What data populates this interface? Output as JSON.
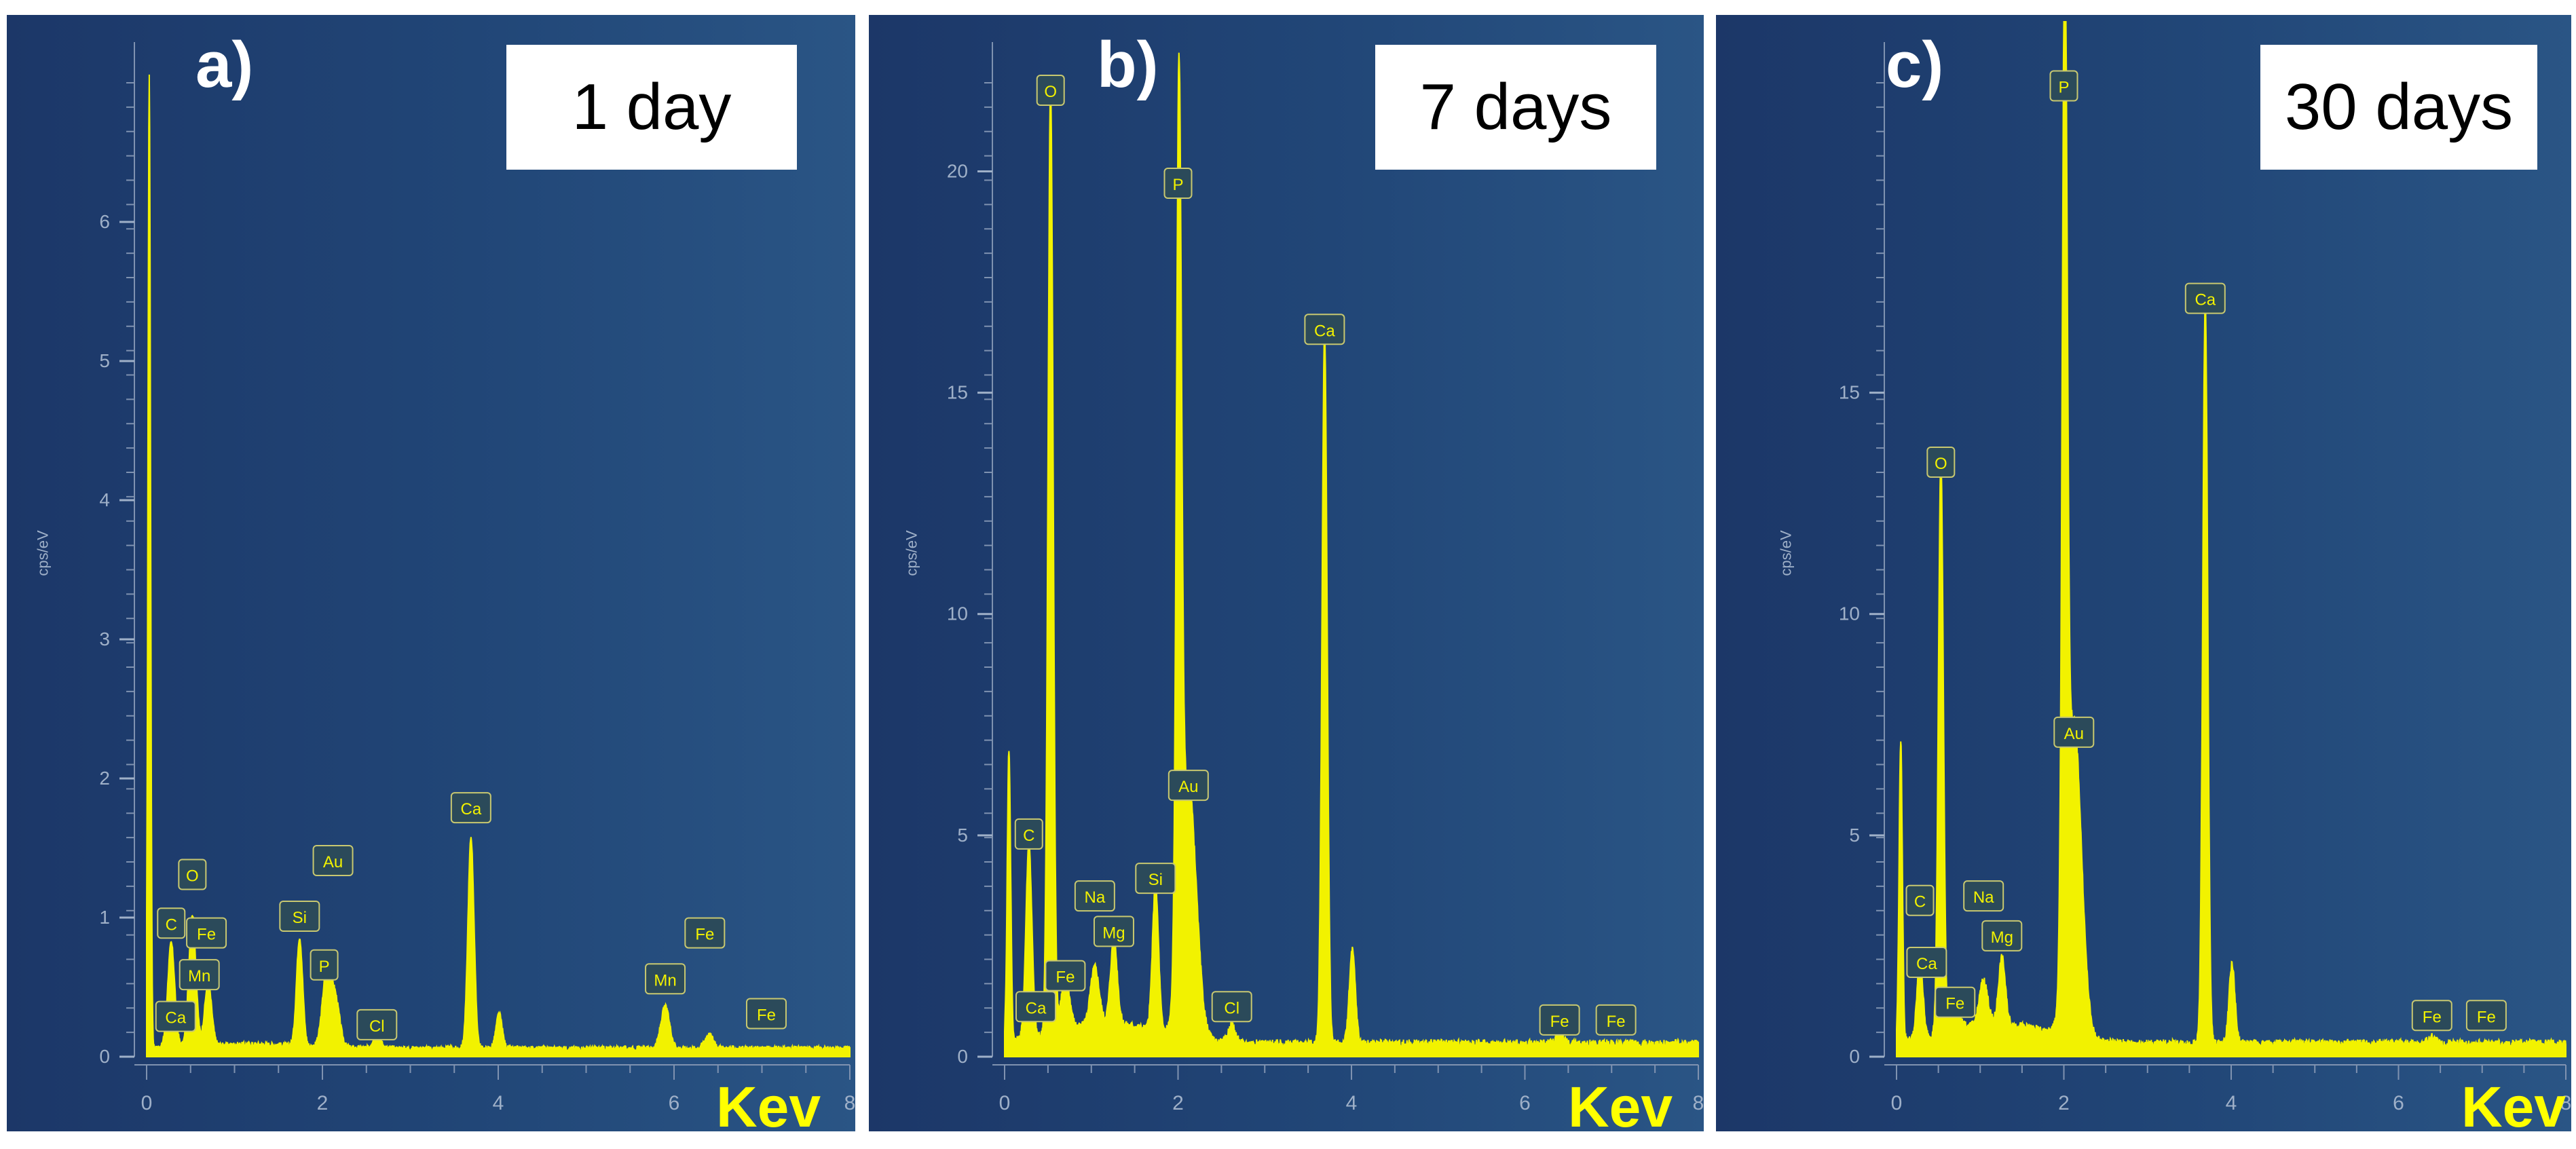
{
  "chart_data": [
    {
      "type": "line",
      "panel_label": "a)",
      "day_label": "1 day",
      "xlabel": "Kev",
      "ylabel": "cps/eV",
      "xlim": [
        0,
        8
      ],
      "ylim": [
        0,
        7
      ],
      "x_ticks": [
        "0",
        "2",
        "4",
        "6",
        "8"
      ],
      "y_ticks": [
        "0",
        "1",
        "2",
        "3",
        "4",
        "5",
        "6"
      ],
      "line_color": "#f2f200",
      "peaks": [
        {
          "x": 0.03,
          "y": 7.0,
          "w": 0.015
        },
        {
          "x": 0.28,
          "y": 0.75,
          "w": 0.04
        },
        {
          "x": 0.52,
          "y": 0.95,
          "w": 0.04
        },
        {
          "x": 0.7,
          "y": 0.45,
          "w": 0.04
        },
        {
          "x": 1.74,
          "y": 0.78,
          "w": 0.035
        },
        {
          "x": 2.05,
          "y": 0.55,
          "w": 0.05
        },
        {
          "x": 2.15,
          "y": 0.32,
          "w": 0.05
        },
        {
          "x": 2.62,
          "y": 0.12,
          "w": 0.04
        },
        {
          "x": 3.69,
          "y": 1.52,
          "w": 0.035
        },
        {
          "x": 4.01,
          "y": 0.25,
          "w": 0.035
        },
        {
          "x": 5.9,
          "y": 0.3,
          "w": 0.05
        },
        {
          "x": 6.4,
          "y": 0.1,
          "w": 0.05
        }
      ],
      "baseline": 0.06,
      "annotations": [
        {
          "text": "C",
          "x": 0.28,
          "y": 0.95
        },
        {
          "text": "O",
          "x": 0.52,
          "y": 1.3
        },
        {
          "text": "Fe",
          "x": 0.68,
          "y": 0.88
        },
        {
          "text": "Mn",
          "x": 0.6,
          "y": 0.58
        },
        {
          "text": "Ca",
          "x": 0.33,
          "y": 0.28
        },
        {
          "text": "Si",
          "x": 1.74,
          "y": 1.0
        },
        {
          "text": "Au",
          "x": 2.12,
          "y": 1.4
        },
        {
          "text": "P",
          "x": 2.02,
          "y": 0.65
        },
        {
          "text": "Cl",
          "x": 2.62,
          "y": 0.22
        },
        {
          "text": "Ca",
          "x": 3.69,
          "y": 1.78
        },
        {
          "text": "Mn",
          "x": 5.9,
          "y": 0.55
        },
        {
          "text": "Fe",
          "x": 6.35,
          "y": 0.88
        },
        {
          "text": "Fe",
          "x": 7.05,
          "y": 0.3
        }
      ]
    },
    {
      "type": "line",
      "panel_label": "b)",
      "day_label": "7 days",
      "xlabel": "Kev",
      "ylabel": "cps/eV",
      "xlim": [
        0,
        8
      ],
      "ylim": [
        0,
        22
      ],
      "x_ticks": [
        "0",
        "2",
        "4",
        "6",
        "8"
      ],
      "y_ticks": [
        "0",
        "5",
        "10",
        "15",
        "20"
      ],
      "line_color": "#f2f200",
      "peaks": [
        {
          "x": 0.05,
          "y": 6.6,
          "w": 0.02
        },
        {
          "x": 0.28,
          "y": 4.4,
          "w": 0.035
        },
        {
          "x": 0.53,
          "y": 21.5,
          "w": 0.03
        },
        {
          "x": 0.7,
          "y": 1.2,
          "w": 0.05
        },
        {
          "x": 1.04,
          "y": 1.3,
          "w": 0.05
        },
        {
          "x": 1.26,
          "y": 1.9,
          "w": 0.04
        },
        {
          "x": 1.74,
          "y": 3.3,
          "w": 0.035
        },
        {
          "x": 2.01,
          "y": 19.4,
          "w": 0.03
        },
        {
          "x": 2.12,
          "y": 5.8,
          "w": 0.09
        },
        {
          "x": 2.62,
          "y": 0.4,
          "w": 0.04
        },
        {
          "x": 3.69,
          "y": 16.1,
          "w": 0.03
        },
        {
          "x": 4.01,
          "y": 2.1,
          "w": 0.035
        },
        {
          "x": 6.4,
          "y": 0.2,
          "w": 0.05
        }
      ],
      "baseline": 0.3,
      "annotations": [
        {
          "text": "O",
          "x": 0.53,
          "y": 21.8
        },
        {
          "text": "P",
          "x": 2.0,
          "y": 19.7
        },
        {
          "text": "Ca",
          "x": 3.69,
          "y": 16.4
        },
        {
          "text": "Au",
          "x": 2.12,
          "y": 6.1
        },
        {
          "text": "C",
          "x": 0.28,
          "y": 5.0
        },
        {
          "text": "Na",
          "x": 1.04,
          "y": 3.6
        },
        {
          "text": "Mg",
          "x": 1.26,
          "y": 2.8
        },
        {
          "text": "Si",
          "x": 1.74,
          "y": 4.0
        },
        {
          "text": "Fe",
          "x": 0.7,
          "y": 1.8
        },
        {
          "text": "Ca",
          "x": 0.36,
          "y": 1.1
        },
        {
          "text": "Cl",
          "x": 2.62,
          "y": 1.1
        },
        {
          "text": "Fe",
          "x": 6.4,
          "y": 0.8
        },
        {
          "text": "Fe",
          "x": 7.05,
          "y": 0.8
        }
      ]
    },
    {
      "type": "line",
      "panel_label": "c)",
      "day_label": "30 days",
      "xlabel": "Kev",
      "ylabel": "cps/eV",
      "xlim": [
        0,
        8
      ],
      "ylim": [
        0,
        22
      ],
      "x_ticks": [
        "0",
        "2",
        "4",
        "6",
        "8"
      ],
      "y_ticks": [
        "0",
        "5",
        "10",
        "15"
      ],
      "line_color": "#f2f200",
      "peaks": [
        {
          "x": 0.05,
          "y": 6.8,
          "w": 0.02
        },
        {
          "x": 0.28,
          "y": 1.8,
          "w": 0.035
        },
        {
          "x": 0.53,
          "y": 13.0,
          "w": 0.03
        },
        {
          "x": 0.7,
          "y": 0.8,
          "w": 0.05
        },
        {
          "x": 1.04,
          "y": 1.0,
          "w": 0.05
        },
        {
          "x": 1.26,
          "y": 1.5,
          "w": 0.04
        },
        {
          "x": 2.01,
          "y": 21.8,
          "w": 0.03
        },
        {
          "x": 2.12,
          "y": 7.2,
          "w": 0.09
        },
        {
          "x": 3.69,
          "y": 16.8,
          "w": 0.03
        },
        {
          "x": 4.01,
          "y": 1.8,
          "w": 0.035
        },
        {
          "x": 6.4,
          "y": 0.15,
          "w": 0.05
        }
      ],
      "baseline": 0.3,
      "annotations": [
        {
          "text": "P",
          "x": 2.0,
          "y": 21.9
        },
        {
          "text": "Ca",
          "x": 3.69,
          "y": 17.1
        },
        {
          "text": "O",
          "x": 0.53,
          "y": 13.4
        },
        {
          "text": "Au",
          "x": 2.12,
          "y": 7.3
        },
        {
          "text": "C",
          "x": 0.28,
          "y": 3.5
        },
        {
          "text": "Na",
          "x": 1.04,
          "y": 3.6
        },
        {
          "text": "Mg",
          "x": 1.26,
          "y": 2.7
        },
        {
          "text": "Ca",
          "x": 0.36,
          "y": 2.1
        },
        {
          "text": "Fe",
          "x": 0.7,
          "y": 1.2
        },
        {
          "text": "Fe",
          "x": 6.4,
          "y": 0.9
        },
        {
          "text": "Fe",
          "x": 7.05,
          "y": 0.9
        }
      ]
    }
  ]
}
